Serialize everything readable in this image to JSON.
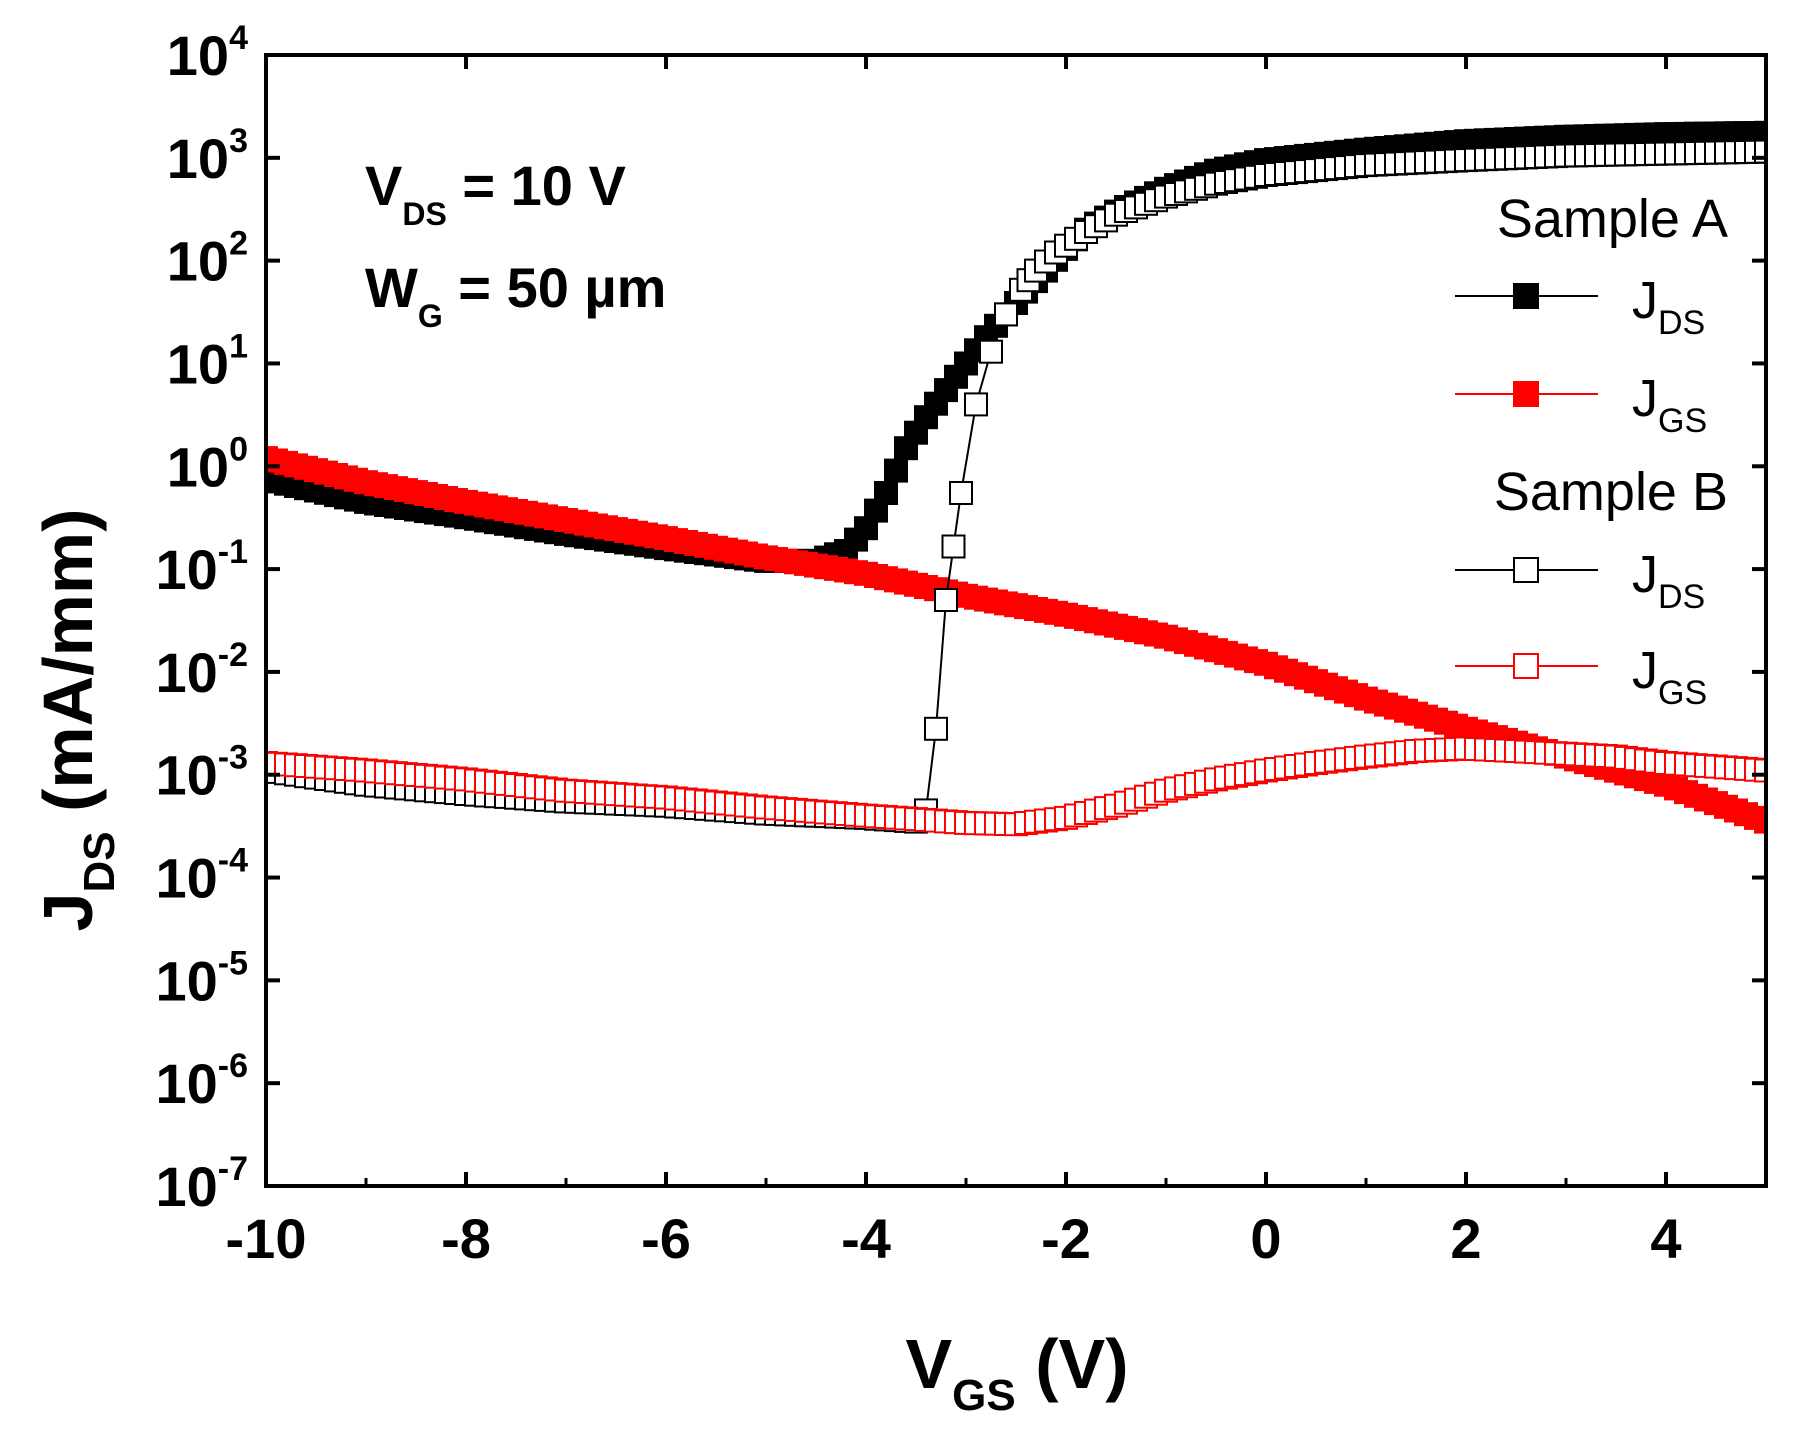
{
  "chart_data": {
    "type": "scatter",
    "scale_y": "log",
    "xlabel": {
      "main": "V",
      "sub": "GS",
      "unit": " (V)"
    },
    "ylabel": {
      "main": "J",
      "sub": "DS",
      "unit": " (mA/mm)"
    },
    "xlim": [
      -10,
      5
    ],
    "ylim_exp": [
      -7,
      4
    ],
    "x_ticks": [
      -10,
      -8,
      -6,
      -4,
      -2,
      0,
      2,
      4
    ],
    "x_tick_labels": [
      "-10",
      "-8",
      "-6",
      "-4",
      "-2",
      "0",
      "2",
      "4"
    ],
    "y_ticks_exp": [
      -7,
      -6,
      -5,
      -4,
      -3,
      -2,
      -1,
      0,
      1,
      2,
      3,
      4
    ],
    "y_tick_labels": [
      "-7",
      "-6",
      "-5",
      "-4",
      "-3",
      "-2",
      "-1",
      "0",
      "1",
      "2",
      "3",
      "4"
    ],
    "y_tick_base": "10",
    "annotations": [
      {
        "main": "V",
        "sub": "DS",
        "rest": " = 10 V"
      },
      {
        "main": "W",
        "sub": "G",
        "rest": " = 50 µm"
      }
    ],
    "legend_position": "right",
    "legend": [
      {
        "group": "Sample A",
        "entries": [
          {
            "main": "J",
            "sub": "DS",
            "series": "A_JDS"
          },
          {
            "main": "J",
            "sub": "GS",
            "series": "A_JGS"
          }
        ]
      },
      {
        "group": "Sample B",
        "entries": [
          {
            "main": "J",
            "sub": "DS",
            "series": "B_JDS"
          },
          {
            "main": "J",
            "sub": "GS",
            "series": "B_JGS"
          }
        ]
      }
    ],
    "series": [
      {
        "id": "A_JDS",
        "name": "Sample A J_DS",
        "color": "#000000",
        "filled": true,
        "points": [
          [
            -10,
            0.75
          ],
          [
            -9,
            0.45
          ],
          [
            -8,
            0.32
          ],
          [
            -7,
            0.22
          ],
          [
            -6,
            0.16
          ],
          [
            -5,
            0.12
          ],
          [
            -4.5,
            0.12
          ],
          [
            -4.2,
            0.15
          ],
          [
            -4.0,
            0.25
          ],
          [
            -3.8,
            0.55
          ],
          [
            -3.6,
            1.5
          ],
          [
            -3.4,
            3
          ],
          [
            -3.2,
            5.5
          ],
          [
            -3.0,
            10
          ],
          [
            -2.8,
            18
          ],
          [
            -2.6,
            30
          ],
          [
            -2.4,
            50
          ],
          [
            -2.2,
            80
          ],
          [
            -2.0,
            130
          ],
          [
            -1.8,
            200
          ],
          [
            -1.5,
            300
          ],
          [
            -1.0,
            500
          ],
          [
            -0.5,
            750
          ],
          [
            0,
            950
          ],
          [
            1,
            1200
          ],
          [
            2,
            1450
          ],
          [
            3,
            1600
          ],
          [
            4,
            1700
          ],
          [
            5,
            1750
          ]
        ]
      },
      {
        "id": "A_JGS",
        "name": "Sample A J_GS",
        "color": "#ff0000",
        "filled": true,
        "points": [
          [
            -10,
            1.2
          ],
          [
            -9,
            0.7
          ],
          [
            -8,
            0.45
          ],
          [
            -7,
            0.3
          ],
          [
            -6,
            0.2
          ],
          [
            -5,
            0.13
          ],
          [
            -4,
            0.09
          ],
          [
            -3,
            0.055
          ],
          [
            -2,
            0.036
          ],
          [
            -1,
            0.022
          ],
          [
            0,
            0.012
          ],
          [
            1,
            0.0055
          ],
          [
            2,
            0.0028
          ],
          [
            3,
            0.0015
          ],
          [
            4,
            0.0008
          ],
          [
            5,
            0.00035
          ]
        ]
      },
      {
        "id": "B_JDS",
        "name": "Sample B J_DS",
        "color": "#000000",
        "filled": false,
        "points": [
          [
            -10,
            0.0011
          ],
          [
            -9,
            0.0008
          ],
          [
            -8,
            0.00065
          ],
          [
            -7,
            0.00055
          ],
          [
            -6,
            0.0005
          ],
          [
            -5,
            0.00042
          ],
          [
            -4,
            0.00038
          ],
          [
            -3.5,
            0.00035
          ],
          [
            -3.4,
            0.00045
          ],
          [
            -3.3,
            0.0028
          ],
          [
            -3.2,
            0.05
          ],
          [
            -3.05,
            0.55
          ],
          [
            -2.9,
            4
          ],
          [
            -2.75,
            13
          ],
          [
            -2.6,
            30
          ],
          [
            -2.45,
            52
          ],
          [
            -2.3,
            80
          ],
          [
            -2.1,
            120
          ],
          [
            -1.8,
            190
          ],
          [
            -1.5,
            280
          ],
          [
            -1.0,
            420
          ],
          [
            -0.5,
            560
          ],
          [
            0,
            680
          ],
          [
            1,
            850
          ],
          [
            2,
            950
          ],
          [
            3,
            1050
          ],
          [
            4,
            1100
          ],
          [
            5,
            1150
          ]
        ]
      },
      {
        "id": "B_JGS",
        "name": "Sample B J_GS",
        "color": "#ff0000",
        "filled": false,
        "points": [
          [
            -10,
            0.0013
          ],
          [
            -9,
            0.0011
          ],
          [
            -8,
            0.0009
          ],
          [
            -7,
            0.0007
          ],
          [
            -6,
            0.0006
          ],
          [
            -5,
            0.00048
          ],
          [
            -4,
            0.0004
          ],
          [
            -3.5,
            0.00037
          ],
          [
            -3,
            0.00034
          ],
          [
            -2.5,
            0.00033
          ],
          [
            -2,
            0.00038
          ],
          [
            -1.5,
            0.0005
          ],
          [
            -1,
            0.0007
          ],
          [
            -0.5,
            0.0009
          ],
          [
            0,
            0.0011
          ],
          [
            0.5,
            0.0013
          ],
          [
            1,
            0.0015
          ],
          [
            1.5,
            0.0017
          ],
          [
            2,
            0.0018
          ],
          [
            2.5,
            0.0017
          ],
          [
            3,
            0.0016
          ],
          [
            3.5,
            0.0015
          ],
          [
            4,
            0.0013
          ],
          [
            4.5,
            0.0012
          ],
          [
            5,
            0.0011
          ]
        ]
      }
    ]
  }
}
